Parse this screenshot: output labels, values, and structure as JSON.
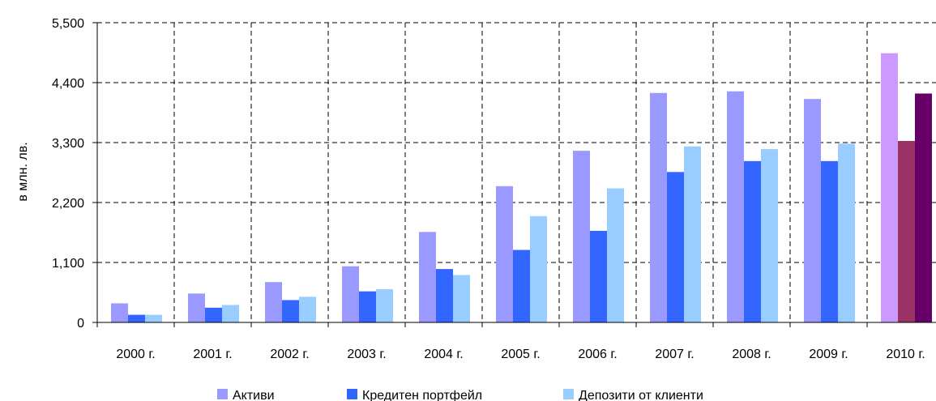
{
  "chart_data": {
    "type": "bar",
    "title": "",
    "xlabel": "",
    "ylabel": "в млн. лв.",
    "ylim": [
      0,
      5500
    ],
    "yticks": [
      0,
      1100,
      2200,
      3300,
      4400,
      5500
    ],
    "ytick_labels": [
      "0",
      "1,100",
      "2,200",
      "3,300",
      "4,400",
      "5,500"
    ],
    "grid": true,
    "legend_position": "bottom",
    "categories": [
      "2000 г.",
      "2001 г.",
      "2002 г.",
      "2003 г.",
      "2004 г.",
      "2005 г.",
      "2006 г.",
      "2007 г.",
      "2008 г.",
      "2009 г.",
      "2010 г."
    ],
    "series": [
      {
        "name": "Активи",
        "color": "#9999ff",
        "values": [
          350,
          530,
          740,
          1030,
          1660,
          2500,
          3150,
          4210,
          4240,
          4100,
          4940
        ]
      },
      {
        "name": "Кредитен портфейл",
        "color": "#3366ff",
        "values": [
          140,
          270,
          410,
          570,
          980,
          1330,
          1680,
          2760,
          2960,
          2960,
          3330
        ]
      },
      {
        "name": "Депозити от клиенти",
        "color": "#99ccff",
        "values": [
          140,
          320,
          470,
          610,
          870,
          1950,
          2460,
          3230,
          3180,
          3280,
          4200
        ]
      }
    ],
    "highlight_category": "2010 г.",
    "highlight_colors": [
      "#cc99ff",
      "#993366",
      "#660066"
    ]
  }
}
